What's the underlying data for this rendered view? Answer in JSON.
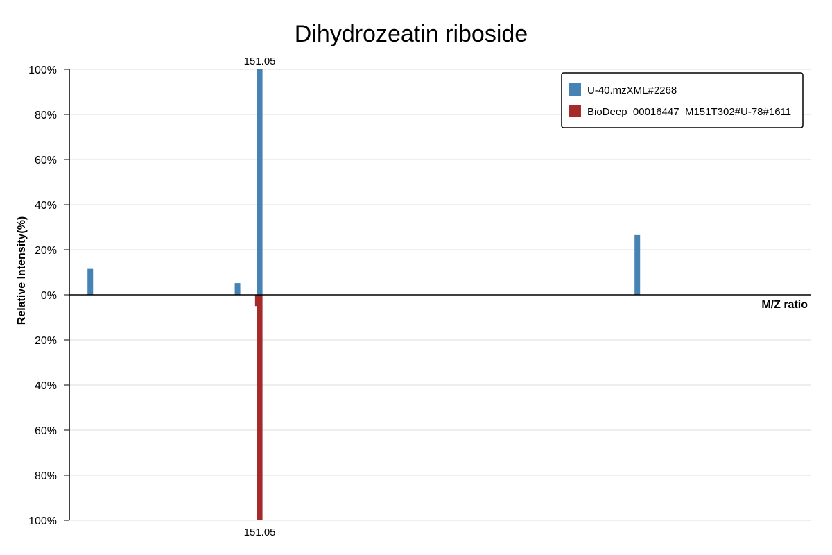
{
  "chart_data": {
    "type": "bar",
    "title": "Dihydrozeatin riboside",
    "xlabel": "M/Z ratio",
    "ylabel": "Relative Intensity(%)",
    "y_ticks_top": [
      "100%",
      "80%",
      "60%",
      "40%",
      "20%",
      "0%"
    ],
    "y_ticks_bottom": [
      "20%",
      "40%",
      "60%",
      "80%",
      "100%"
    ],
    "ylim": [
      -100,
      100
    ],
    "xlim": [
      136.05,
      194.5
    ],
    "grid": true,
    "legend_position": "top-right",
    "series": [
      {
        "name": "U-40.mzXML#2268",
        "color": "#4682b4",
        "points": [
          {
            "mz": 137.7,
            "intensity": 11.5
          },
          {
            "mz": 149.3,
            "intensity": 5.2
          },
          {
            "mz": 151.05,
            "intensity": 100
          },
          {
            "mz": 180.8,
            "intensity": 26.5
          }
        ]
      },
      {
        "name": "BioDeep_00016447_M151T302#U-78#1611",
        "color": "#a52a2a",
        "points": [
          {
            "mz": 150.9,
            "intensity": -5
          },
          {
            "mz": 151.05,
            "intensity": -100
          }
        ]
      }
    ],
    "annotations": [
      {
        "text": "151.05",
        "mz": 151.05,
        "position": "top"
      },
      {
        "text": "151.05",
        "mz": 151.05,
        "position": "bottom"
      }
    ]
  }
}
